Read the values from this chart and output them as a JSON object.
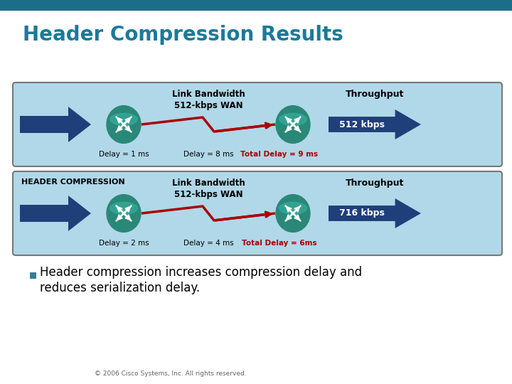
{
  "title": "Header Compression Results",
  "title_color": "#1A7A9A",
  "title_fontsize": 20,
  "bg_color": "#FFFFFF",
  "slide_top_bar_color": "#1A6E8A",
  "bullet_line1": "Header compression increases compression delay and",
  "bullet_line2": "reduces serialization delay.",
  "copyright_text": "© 2006 Cisco Systems, Inc. All rights reserved.",
  "box1": {
    "label_top_left": "",
    "bandwidth_label": "Link Bandwidth\n512-kbps WAN",
    "throughput_label": "Throughput",
    "throughput_value": "512 kbps",
    "delay1": "Delay = 1 ms",
    "delay2": "Delay = 8 ms",
    "total_delay": "Total Delay = 9 ms",
    "show_hc_label": false
  },
  "box2": {
    "label_top_left": "HEADER COMPRESSION",
    "bandwidth_label": "Link Bandwidth\n512-kbps WAN",
    "throughput_label": "Throughput",
    "throughput_value": "716 kbps",
    "delay1": "Delay = 2 ms",
    "delay2": "Delay = 4 ms",
    "total_delay": "Total Delay = 6ms",
    "show_hc_label": true
  },
  "box_bg": "#B0D8E8",
  "box_border": "#777777",
  "arrow_blue": "#1F3F7A",
  "router_color_top": "#2A8878",
  "router_color_bottom": "#2A8878",
  "delay_red": "#AA0000",
  "tp_arrow_color": "#1F3F7A",
  "tp_text_color": "#FFFFFF"
}
